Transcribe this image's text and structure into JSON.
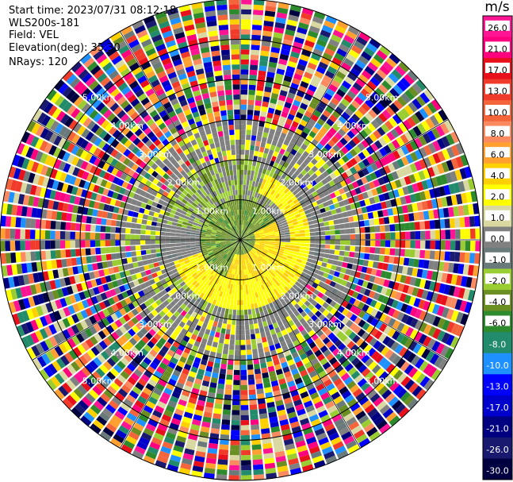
{
  "header": {
    "start_time": "Start time: 2023/07/31 08:12:18",
    "site": "WLS200s-181",
    "field": "Field: VEL",
    "elevation": "Elevation(deg): 35.30",
    "nrays": "NRays: 120"
  },
  "chart_data": {
    "type": "heatmap",
    "subtype": "polar-ppi",
    "title": "",
    "nrays": 120,
    "range_km": [
      0,
      6
    ],
    "range_ring_labels_km": [
      "1.00km",
      "2.00km",
      "3.00km",
      "4.00km",
      "5.00km"
    ],
    "range_rings_km": [
      1,
      2,
      3,
      4,
      5,
      6
    ],
    "spokes_deg": [
      0,
      30,
      60,
      90,
      120,
      150,
      180,
      210,
      240,
      270,
      300,
      330
    ],
    "colorbar": {
      "unit": "m/s",
      "labels": [
        "26.0",
        "21.0",
        "17.0",
        "13.0",
        "10.0",
        "8.0",
        "6.0",
        "4.0",
        "2.0",
        "1.0",
        "0.0",
        "-1.0",
        "-2.0",
        "-4.0",
        "-6.0",
        "-8.0",
        "-10.0",
        "-13.0",
        "-17.0",
        "-21.0",
        "-26.0",
        "-30.0"
      ],
      "colors": [
        "#ff1493",
        "#ff007f",
        "#e8101b",
        "#f03a2a",
        "#f5653c",
        "#fb8a60",
        "#ffa030",
        "#ffd000",
        "#ffff00",
        "#d8d8a0",
        "#808080",
        "#6a7a7a",
        "#9acd32",
        "#6b8e23",
        "#2d8a2d",
        "#228b6b",
        "#1e90ff",
        "#0000ff",
        "#0000cd",
        "#000080",
        "#191970",
        "#000040"
      ]
    },
    "pattern": {
      "inner_green_km": 1.0,
      "yellow_ring_km": [
        1.0,
        2.0
      ],
      "gray_zone_km": [
        1.0,
        2.6
      ],
      "noise_start_km": 3.0
    }
  }
}
